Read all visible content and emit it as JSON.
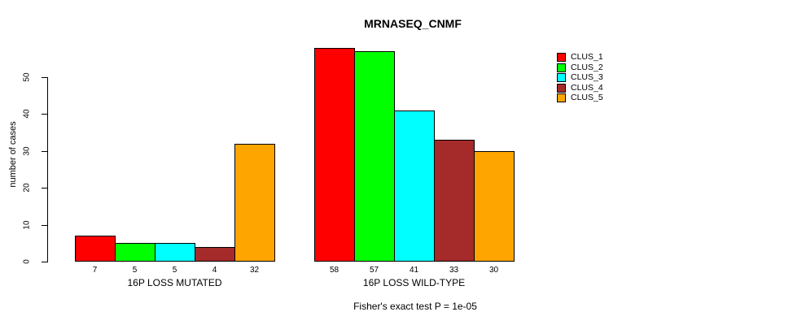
{
  "title": "MRNASEQ_CNMF",
  "ylabel": "number of cases",
  "footer": "Fisher's exact test P = 1e-05",
  "chart_data": {
    "type": "bar",
    "title": "MRNASEQ_CNMF",
    "xlabel": "",
    "ylabel": "number of cases",
    "yticks": [
      0,
      10,
      20,
      30,
      40,
      50
    ],
    "ylim": [
      0,
      58
    ],
    "grid": false,
    "legend_position": "right",
    "annotation": "Fisher's exact test P = 1e-05",
    "categories": [
      "16P LOSS MUTATED",
      "16P LOSS WILD-TYPE"
    ],
    "series": [
      {
        "name": "CLUS_1",
        "color": "#ff0000",
        "values": [
          7,
          58
        ]
      },
      {
        "name": "CLUS_2",
        "color": "#00ff00",
        "values": [
          5,
          57
        ]
      },
      {
        "name": "CLUS_3",
        "color": "#00ffff",
        "values": [
          5,
          41
        ]
      },
      {
        "name": "CLUS_4",
        "color": "#a52a2a",
        "values": [
          4,
          33
        ]
      },
      {
        "name": "CLUS_5",
        "color": "#ffa500",
        "values": [
          32,
          30
        ]
      }
    ],
    "bar_value_labels": [
      [
        "7",
        "5",
        "5",
        "4",
        "32"
      ],
      [
        "58",
        "57",
        "41",
        "33",
        "30"
      ]
    ]
  }
}
